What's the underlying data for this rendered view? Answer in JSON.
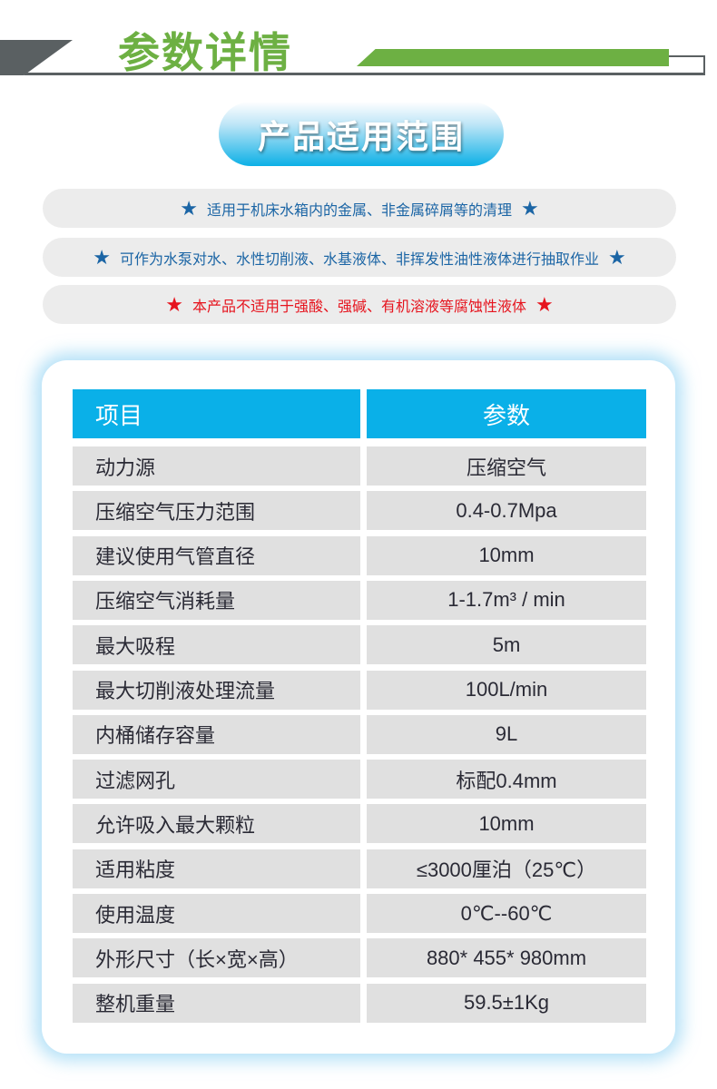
{
  "header": {
    "title": "参数详情"
  },
  "badge": {
    "label": "产品适用范围"
  },
  "notes": [
    {
      "text": "适用于机床水箱内的金属、非金属碎屑等的清理",
      "icon": "star",
      "color": "#1b65a5"
    },
    {
      "text": "可作为水泵对水、水性切削液、水基液体、非挥发性油性液体进行抽取作业",
      "icon": "star",
      "color": "#1b65a5"
    },
    {
      "text": "本产品不适用于强酸、强碱、有机溶液等腐蚀性液体",
      "icon": "star",
      "color": "#e6141e"
    }
  ],
  "table": {
    "headers": [
      "项目",
      "参数"
    ],
    "rows": [
      [
        "动力源",
        "压缩空气"
      ],
      [
        "压缩空气压力范围",
        "0.4-0.7Mpa"
      ],
      [
        "建议使用气管直径",
        "10mm"
      ],
      [
        "压缩空气消耗量",
        "1-1.7m³ / min"
      ],
      [
        "最大吸程",
        "5m"
      ],
      [
        "最大切削液处理流量",
        "100L/min"
      ],
      [
        "内桶储存容量",
        "9L"
      ],
      [
        "过滤网孔",
        "标配0.4mm"
      ],
      [
        "允许吸入最大颗粒",
        "10mm"
      ],
      [
        "适用粘度",
        "≤3000厘泊（25℃）"
      ],
      [
        "使用温度",
        "0℃--60℃"
      ],
      [
        "外形尺寸（长×宽×高）",
        "880* 455* 980mm"
      ],
      [
        "整机重量",
        "59.5±1Kg"
      ]
    ]
  }
}
